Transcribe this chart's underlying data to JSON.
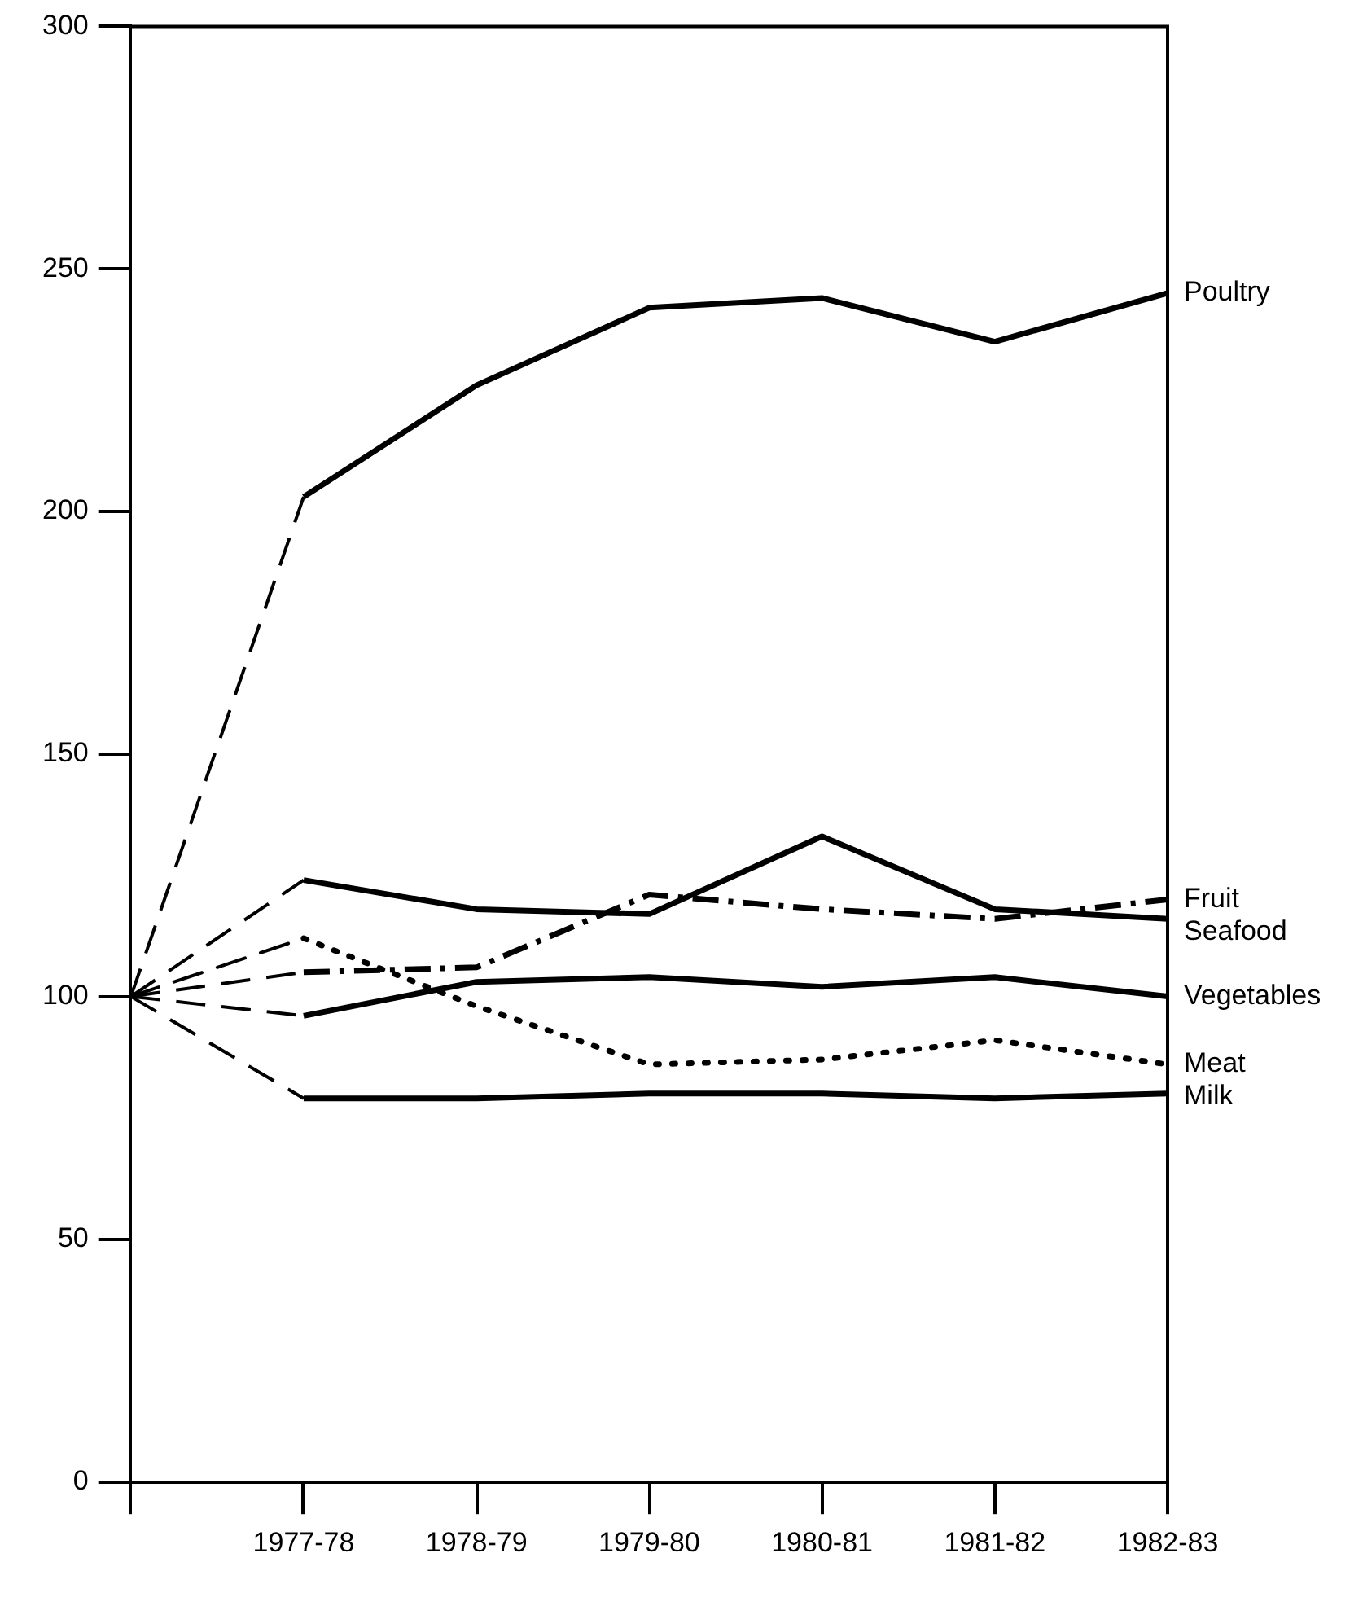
{
  "chart_data": {
    "type": "line",
    "categories": [
      null,
      "1977-78",
      "1978-79",
      "1979-80",
      "1980-81",
      "1981-82",
      "1982-83"
    ],
    "series": [
      {
        "name": "Poultry",
        "color": "#000000",
        "line_style": "solid",
        "values": [
          100,
          203,
          226,
          242,
          244,
          235,
          245
        ]
      },
      {
        "name": "Fruit",
        "color": "#000000",
        "line_style": "dashed",
        "values": [
          100,
          105,
          106,
          121,
          118,
          116,
          120
        ]
      },
      {
        "name": "Seafood",
        "color": "#000000",
        "line_style": "solid",
        "values": [
          100,
          124,
          118,
          117,
          133,
          118,
          116
        ]
      },
      {
        "name": "Vegetables",
        "color": "#000000",
        "line_style": "solid",
        "values": [
          100,
          96,
          103,
          104,
          102,
          104,
          100
        ]
      },
      {
        "name": "Meat",
        "color": "#000000",
        "line_style": "dotted",
        "values": [
          100,
          112,
          98,
          86,
          87,
          91,
          86
        ]
      },
      {
        "name": "Milk",
        "color": "#000000",
        "line_style": "solid",
        "values": [
          100,
          79,
          79,
          80,
          80,
          79,
          80
        ]
      }
    ],
    "ylim": [
      0,
      300
    ],
    "yticks": [
      0,
      50,
      100,
      150,
      200,
      250,
      300
    ],
    "grid": false,
    "legend": false,
    "marker": "none"
  }
}
